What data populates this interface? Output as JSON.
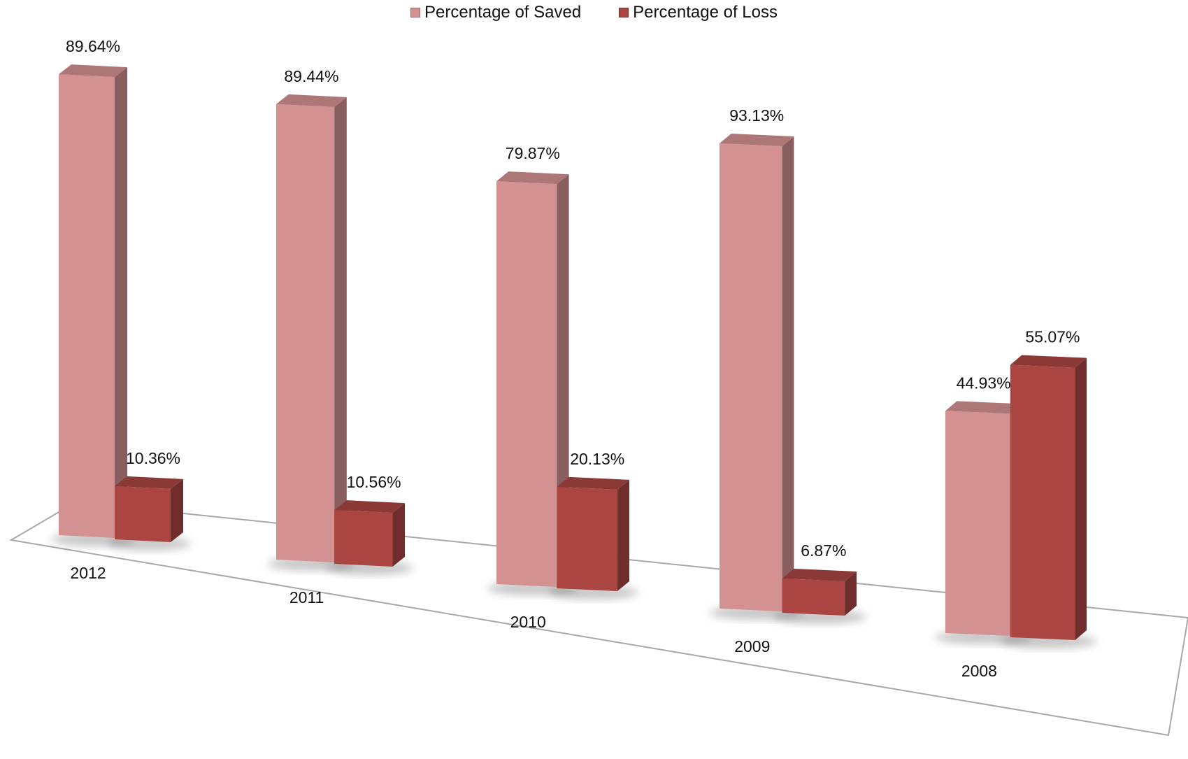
{
  "chart_data": {
    "type": "bar",
    "categories": [
      "2012",
      "2011",
      "2010",
      "2009",
      "2008"
    ],
    "series": [
      {
        "name": "Percentage of Saved",
        "values": [
          89.64,
          89.44,
          79.87,
          93.13,
          44.93
        ],
        "labels": [
          "89.64%",
          "89.44%",
          "79.87%",
          "93.13%",
          "44.93%"
        ],
        "color": "#d39191"
      },
      {
        "name": "Percentage of Loss",
        "values": [
          10.36,
          10.56,
          20.13,
          6.87,
          55.07
        ],
        "labels": [
          "10.36%",
          "10.56%",
          "20.13%",
          "6.87%",
          "55.07%"
        ],
        "color": "#aa4542"
      }
    ],
    "ylim": [
      0,
      100
    ],
    "grid": false,
    "legend_position": "top"
  }
}
